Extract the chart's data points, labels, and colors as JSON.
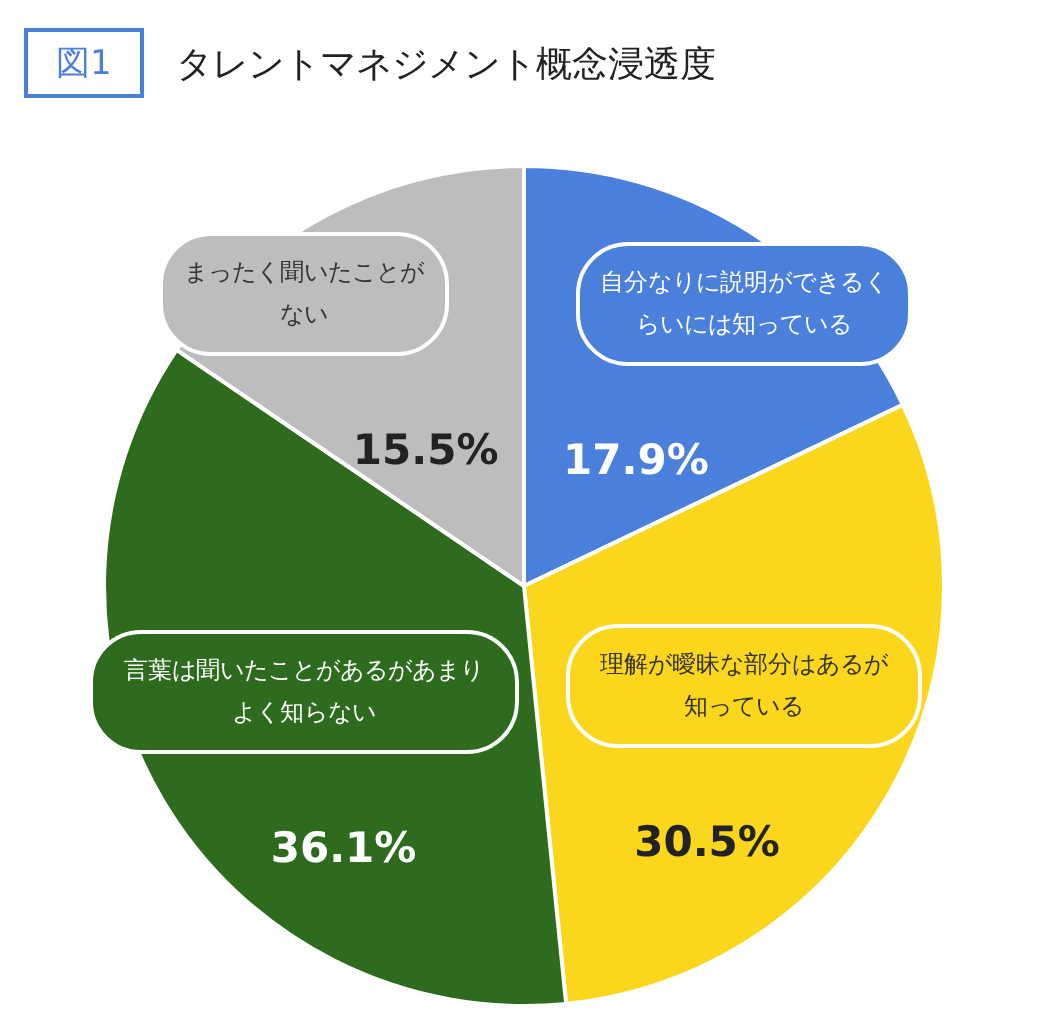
{
  "chart_data": {
    "type": "pie",
    "title": "タレントマネジメント概念浸透度",
    "annotations": [
      "図1"
    ],
    "categories": [
      "自分なりに説明ができるくらいには知っている",
      "理解が曖昧な部分はあるが知っている",
      "言葉は聞いたことがあるがあまりよく知らない",
      "まったく聞いたことがない"
    ],
    "values": [
      17.9,
      30.5,
      36.1,
      15.5
    ],
    "value_labels": [
      "17.9%",
      "30.5%",
      "36.1%",
      "15.5%"
    ],
    "colors": [
      "#4a7fdc",
      "#fad61c",
      "#2e6b1f",
      "#bdbdbd"
    ]
  }
}
